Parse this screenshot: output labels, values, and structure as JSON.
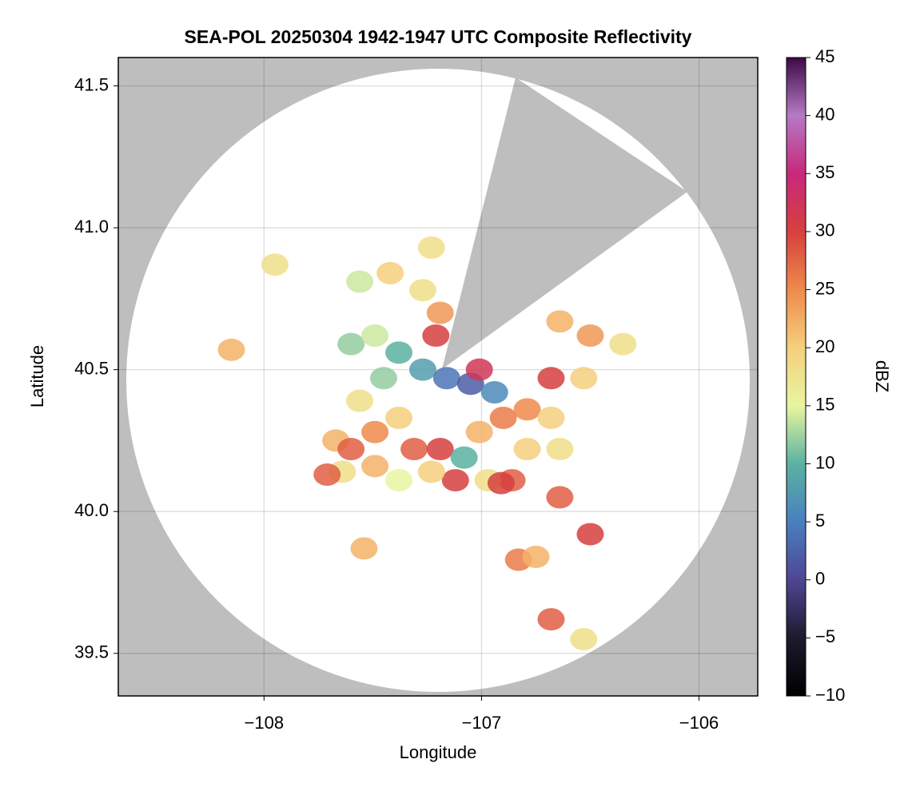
{
  "chart_data": {
    "type": "radar-map",
    "title": "SEA-POL 20250304 1942-1947 UTC Composite Reflectivity",
    "xlabel": "Longitude",
    "ylabel": "Latitude",
    "colorbar_label": "dBZ",
    "xlim": [
      -108.67,
      -105.73
    ],
    "ylim": [
      39.35,
      41.6
    ],
    "xticks": [
      {
        "value": -108,
        "label": "−108"
      },
      {
        "value": -107,
        "label": "−107"
      },
      {
        "value": -106,
        "label": "−106"
      }
    ],
    "yticks": [
      39.5,
      {
        "value": 40,
        "label": "40.0"
      },
      40.5,
      {
        "value": 41,
        "label": "41.0"
      },
      41.5
    ],
    "clim": [
      -10,
      45
    ],
    "cticks": [
      {
        "value": -10,
        "label": "−10"
      },
      {
        "value": -5,
        "label": "−5"
      },
      0,
      5,
      10,
      15,
      20,
      25,
      30,
      35,
      40,
      45
    ],
    "colormap": [
      "#000000",
      "#1c1a2e",
      "#4e4692",
      "#4a7fbf",
      "#5ab2a0",
      "#e8f5a0",
      "#f5cf7c",
      "#ef8a4c",
      "#d6403e",
      "#c8287a",
      "#b47ac4",
      "#3d0a45"
    ],
    "grid": true,
    "echoes": {
      "x": [
        -107.6,
        -107.49,
        -107.38,
        -107.27,
        -107.16,
        -107.05,
        -106.94,
        -107.45,
        -107.56,
        -107.67,
        -107.6,
        -107.49,
        -107.38,
        -107.31,
        -107.19,
        -107.08,
        -107.01,
        -106.9,
        -106.79,
        -106.68,
        -106.64,
        -106.79,
        -106.86,
        -106.97,
        -107.12,
        -107.23,
        -107.38,
        -107.49,
        -107.64,
        -107.21,
        -107.19,
        -107.27,
        -107.42,
        -107.56,
        -107.23,
        -107.01,
        -106.68,
        -106.5,
        -106.35,
        -106.53,
        -106.64,
        -106.64,
        -106.91,
        -106.83,
        -106.75,
        -106.68,
        -106.53,
        -106.5,
        -108.15,
        -107.95,
        -107.54,
        -107.71
      ],
      "y": [
        40.59,
        40.62,
        40.56,
        40.5,
        40.47,
        40.45,
        40.42,
        40.47,
        40.39,
        40.25,
        40.22,
        40.28,
        40.33,
        40.22,
        40.22,
        40.19,
        40.28,
        40.33,
        40.36,
        40.33,
        40.22,
        40.22,
        40.11,
        40.11,
        40.11,
        40.14,
        40.11,
        40.16,
        40.14,
        40.62,
        40.7,
        40.78,
        40.84,
        40.81,
        40.93,
        40.5,
        40.47,
        40.62,
        40.59,
        40.47,
        40.67,
        40.05,
        40.1,
        39.83,
        39.84,
        39.62,
        39.55,
        39.92,
        40.57,
        40.87,
        39.87,
        40.13
      ],
      "values": [
        12,
        14,
        10,
        8,
        4,
        2,
        6,
        12,
        18,
        22,
        28,
        25,
        20,
        28,
        30,
        10,
        22,
        26,
        25,
        20,
        18,
        20,
        28,
        18,
        30,
        20,
        15,
        22,
        18,
        30,
        24,
        18,
        20,
        14,
        18,
        32,
        30,
        24,
        18,
        20,
        22,
        28,
        30,
        26,
        22,
        28,
        18,
        30,
        22,
        18,
        22,
        28
      ]
    }
  }
}
